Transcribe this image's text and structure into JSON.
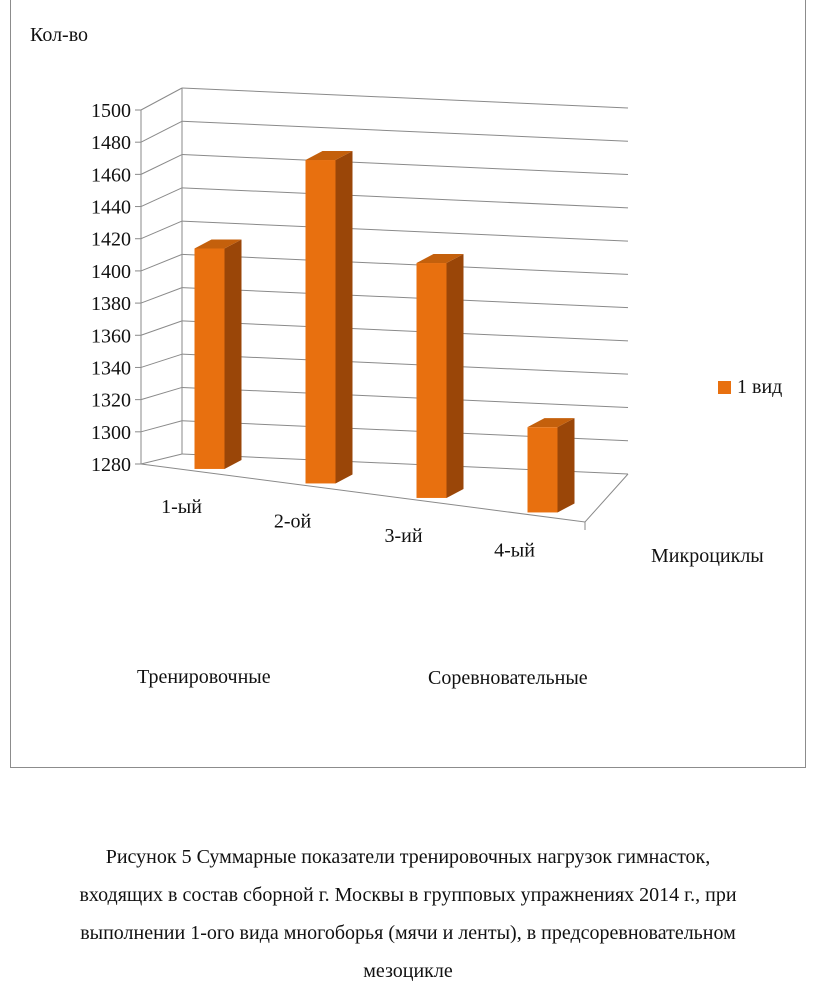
{
  "chart_data": {
    "type": "bar",
    "ylabel": "Кол-во",
    "xlabel": "Микроциклы",
    "categories": [
      "1-ый",
      "2-ой",
      "3-ий",
      "4-ый"
    ],
    "series": [
      {
        "name": "1 вид",
        "values": [
          1417,
          1481,
          1426,
          1333
        ]
      }
    ],
    "ylim": [
      1280,
      1500
    ],
    "yticks": [
      1280,
      1300,
      1320,
      1340,
      1360,
      1380,
      1400,
      1420,
      1440,
      1460,
      1480,
      1500
    ],
    "grid": true,
    "legend_position": "right",
    "color": "#E8700F",
    "groups": [
      "Тренировочные",
      "Соревновательные"
    ]
  },
  "caption": {
    "lines": [
      "Рисунок 5  Суммарные показатели тренировочных нагрузок гимнасток,",
      "входящих в состав сборной г. Москвы в групповых упражнениях 2014 г., при",
      "выполнении 1-ого вида многоборья (мячи и ленты), в предсоревновательном",
      "мезоцикле"
    ]
  }
}
